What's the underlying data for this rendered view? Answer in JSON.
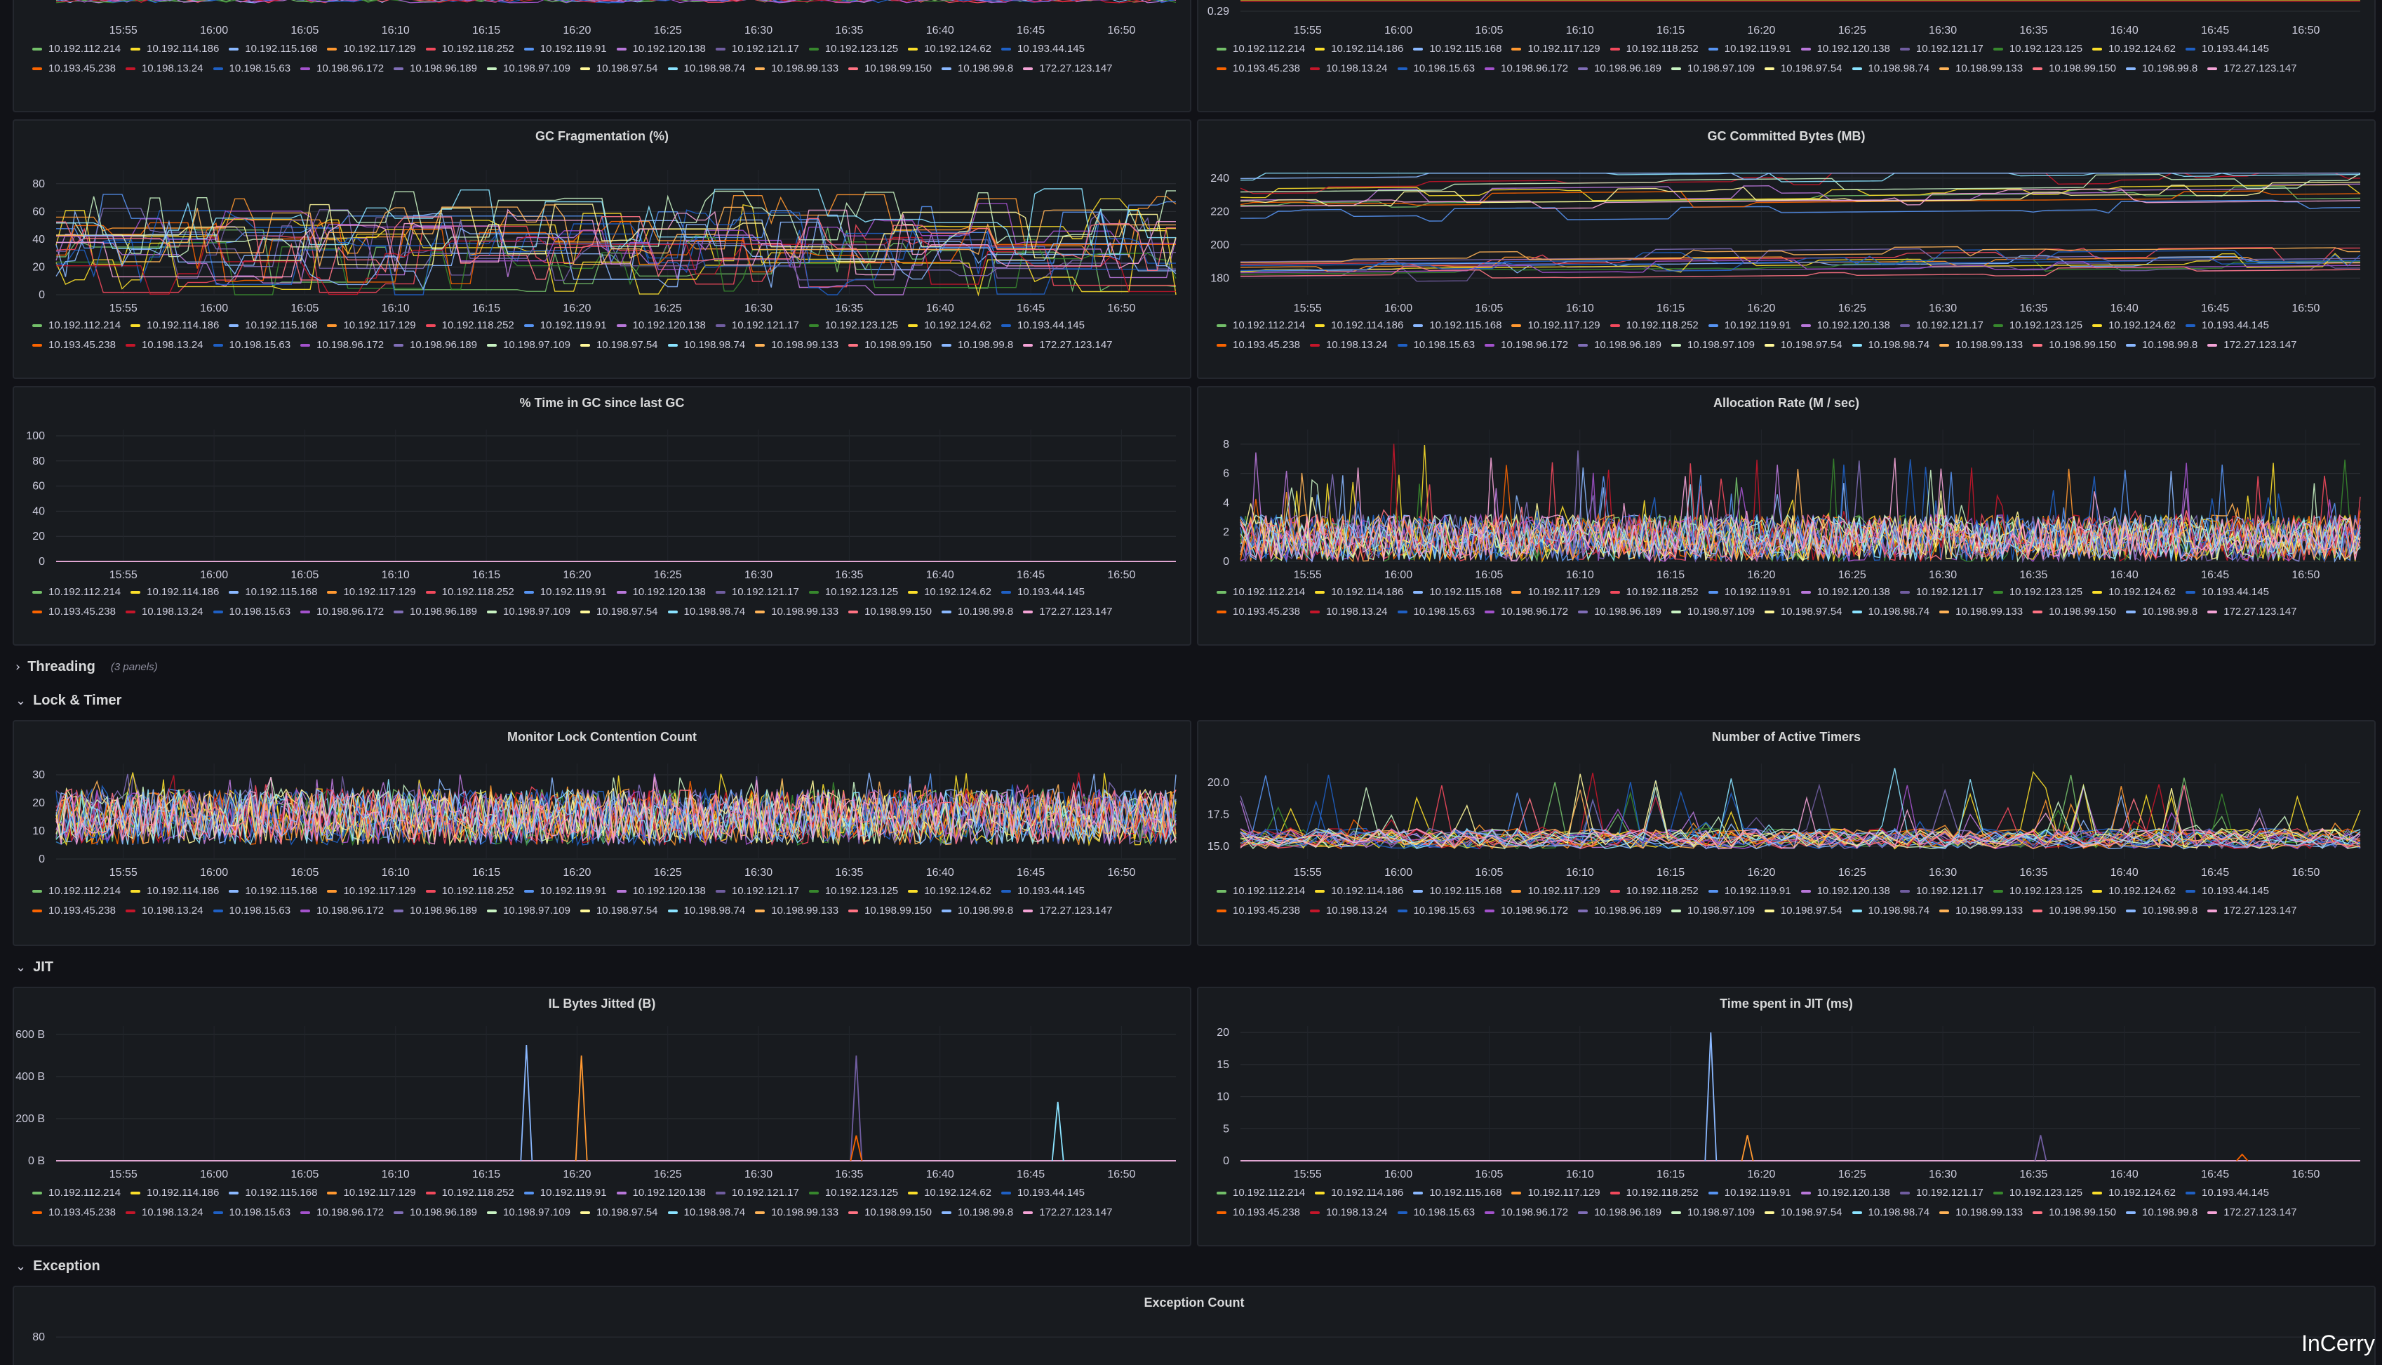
{
  "brand": "InCerry",
  "colors": [
    "#73bf69",
    "#fade2a",
    "#8ab8ff",
    "#ff9830",
    "#f2495c",
    "#5794f2",
    "#b877d9",
    "#705da0",
    "#37872d",
    "#fade2a",
    "#1f60c4",
    "#fa6400",
    "#c4162a",
    "#1f60c4",
    "#a352cc",
    "#806eb7",
    "#c8f2c2",
    "#fff899",
    "#8ae3ff",
    "#ffb357",
    "#ff7383",
    "#8ab8ff",
    "#f4a3d6"
  ],
  "legend": [
    "10.192.112.214",
    "10.192.114.186",
    "10.192.115.168",
    "10.192.117.129",
    "10.192.118.252",
    "10.192.119.91",
    "10.192.120.138",
    "10.192.121.17",
    "10.192.123.125",
    "10.192.124.62",
    "10.193.44.145",
    "10.193.45.238",
    "10.198.13.24",
    "10.198.15.63",
    "10.198.96.172",
    "10.198.96.189",
    "10.198.97.109",
    "10.198.97.54",
    "10.198.98.74",
    "10.198.99.133",
    "10.198.99.150",
    "10.198.99.8",
    "172.27.123.147"
  ],
  "xticks": [
    "15:55",
    "16:00",
    "16:05",
    "16:10",
    "16:15",
    "16:20",
    "16:25",
    "16:30",
    "16:35",
    "16:40",
    "16:45",
    "16:50"
  ],
  "rows": {
    "threading": {
      "chevron": "›",
      "title": "Threading",
      "subtitle": "(3 panels)"
    },
    "lock_timer": {
      "chevron": "⌄",
      "title": "Lock & Timer"
    },
    "jit": {
      "chevron": "⌄",
      "title": "JIT"
    },
    "exception": {
      "chevron": "⌄",
      "title": "Exception"
    }
  },
  "panels": [
    {
      "id": "top-left",
      "title": "",
      "yticks": []
    },
    {
      "id": "top-right",
      "title": "",
      "yticks": [
        "0.29"
      ]
    },
    {
      "id": "gc-frag",
      "title": "GC Fragmentation (%)",
      "yticks": [
        "0",
        "20",
        "40",
        "60",
        "80"
      ]
    },
    {
      "id": "gc-commit",
      "title": "GC Committed Bytes (MB)",
      "yticks": [
        "180",
        "200",
        "220",
        "240"
      ]
    },
    {
      "id": "gc-time",
      "title": "% Time in GC since last GC",
      "yticks": [
        "0",
        "20",
        "40",
        "60",
        "80",
        "100"
      ]
    },
    {
      "id": "alloc",
      "title": "Allocation Rate (M / sec)",
      "yticks": [
        "0",
        "2",
        "4",
        "6",
        "8"
      ]
    },
    {
      "id": "lock",
      "title": "Monitor Lock Contention Count",
      "yticks": [
        "0",
        "10",
        "20",
        "30"
      ]
    },
    {
      "id": "timers",
      "title": "Number of Active Timers",
      "yticks": [
        "15.0",
        "17.5",
        "20.0"
      ]
    },
    {
      "id": "il-bytes",
      "title": "IL Bytes Jitted (B)",
      "yticks": [
        "0 B",
        "200 B",
        "400 B",
        "600 B"
      ]
    },
    {
      "id": "jit-time",
      "title": "Time spent in JIT (ms)",
      "yticks": [
        "0",
        "5",
        "10",
        "15",
        "20"
      ]
    },
    {
      "id": "exceptions",
      "title": "Exception Count",
      "yticks": [
        "80"
      ]
    }
  ],
  "chart_data": [
    {
      "type": "line",
      "title": "GC Fragmentation (%)",
      "ylim": [
        0,
        90
      ],
      "x": [
        "15:55",
        "16:50"
      ],
      "series_count": 23,
      "value_range": [
        0,
        80
      ]
    },
    {
      "type": "line",
      "title": "GC Committed Bytes (MB)",
      "ylim": [
        170,
        245
      ],
      "x": [
        "15:55",
        "16:50"
      ],
      "series_count": 23,
      "value_range": [
        175,
        242
      ]
    },
    {
      "type": "line",
      "title": "% Time in GC since last GC",
      "ylim": [
        0,
        105
      ],
      "x": [
        "15:55",
        "16:50"
      ],
      "series_count": 23,
      "value_range": [
        0,
        0
      ]
    },
    {
      "type": "line",
      "title": "Allocation Rate (M / sec)",
      "ylim": [
        0,
        9
      ],
      "x": [
        "15:55",
        "16:50"
      ],
      "series_count": 23,
      "value_range": [
        0,
        8.2
      ]
    },
    {
      "type": "line",
      "title": "Monitor Lock Contention Count",
      "ylim": [
        0,
        34
      ],
      "x": [
        "15:55",
        "16:50"
      ],
      "series_count": 23,
      "value_range": [
        3,
        32
      ]
    },
    {
      "type": "line",
      "title": "Number of Active Timers",
      "ylim": [
        14,
        21.5
      ],
      "x": [
        "15:55",
        "16:50"
      ],
      "series_count": 23,
      "value_range": [
        14.5,
        21
      ]
    },
    {
      "type": "line",
      "title": "IL Bytes Jitted (B)",
      "ylim": [
        0,
        640
      ],
      "x": [
        "15:55",
        "16:50"
      ],
      "spikes": [
        {
          "x": "16:17",
          "value": 550
        },
        {
          "x": "16:20",
          "value": 500
        },
        {
          "x": "16:35",
          "value": 500
        },
        {
          "x": "16:35",
          "value": 120
        },
        {
          "x": "16:46",
          "value": 280
        }
      ]
    },
    {
      "type": "line",
      "title": "Time spent in JIT (ms)",
      "ylim": [
        0,
        21
      ],
      "x": [
        "15:55",
        "16:50"
      ],
      "spikes": [
        {
          "x": "16:17",
          "value": 20
        },
        {
          "x": "16:19",
          "value": 4
        },
        {
          "x": "16:35",
          "value": 4
        },
        {
          "x": "16:46",
          "value": 1
        }
      ]
    },
    {
      "type": "line",
      "title": "Exception Count",
      "ylim": [
        0,
        90
      ],
      "x": [
        "15:55",
        "16:50"
      ],
      "series_count": 23
    }
  ]
}
